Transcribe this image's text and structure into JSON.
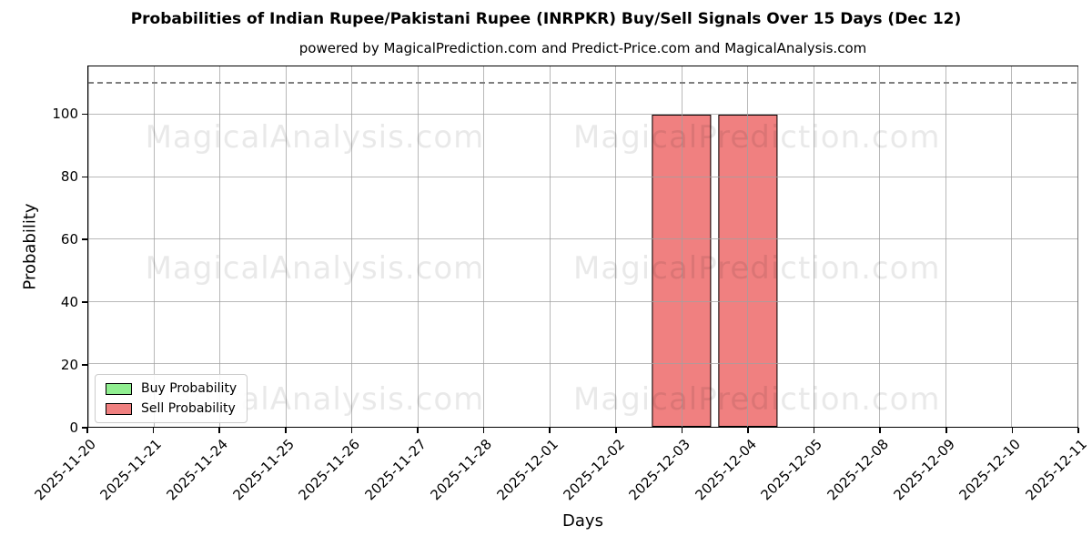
{
  "title": "Probabilities of Indian Rupee/Pakistani Rupee (INRPKR) Buy/Sell Signals Over 15 Days (Dec 12)",
  "subtitle": "powered by MagicalPrediction.com and Predict-Price.com and MagicalAnalysis.com",
  "watermarks": [
    "MagicalAnalysis.com",
    "MagicalPrediction.com"
  ],
  "chart_data": {
    "type": "bar",
    "title": "Probabilities of Indian Rupee/Pakistani Rupee (INRPKR) Buy/Sell Signals Over 15 Days (Dec 12)",
    "subtitle": "powered by MagicalPrediction.com and Predict-Price.com and MagicalAnalysis.com",
    "categories": [
      "2025-11-20",
      "2025-11-21",
      "2025-11-24",
      "2025-11-25",
      "2025-11-26",
      "2025-11-27",
      "2025-11-28",
      "2025-12-01",
      "2025-12-02",
      "2025-12-03",
      "2025-12-04",
      "2025-12-05",
      "2025-12-08",
      "2025-12-09",
      "2025-12-10",
      "2025-12-11"
    ],
    "series": [
      {
        "name": "Buy Probability",
        "color": "#90EE90",
        "edge_color": "#000000",
        "values": [
          0,
          0,
          0,
          0,
          0,
          0,
          0,
          0,
          0,
          0,
          0,
          0,
          0,
          0,
          0,
          0
        ]
      },
      {
        "name": "Sell Probability",
        "color": "#F08080",
        "edge_color": "#000000",
        "values": [
          0,
          0,
          0,
          0,
          0,
          0,
          0,
          0,
          0,
          100,
          100,
          0,
          0,
          0,
          0,
          0
        ]
      }
    ],
    "xlabel": "Days",
    "ylabel": "Probability",
    "yticks": [
      0,
      20,
      40,
      60,
      80,
      100
    ],
    "ylim": [
      0,
      115.5
    ],
    "dashed_line_y": 110,
    "grid": true,
    "gridline_color": "#b0b0b0",
    "legend_position": "lower left",
    "bar_width_fraction": 0.9
  }
}
